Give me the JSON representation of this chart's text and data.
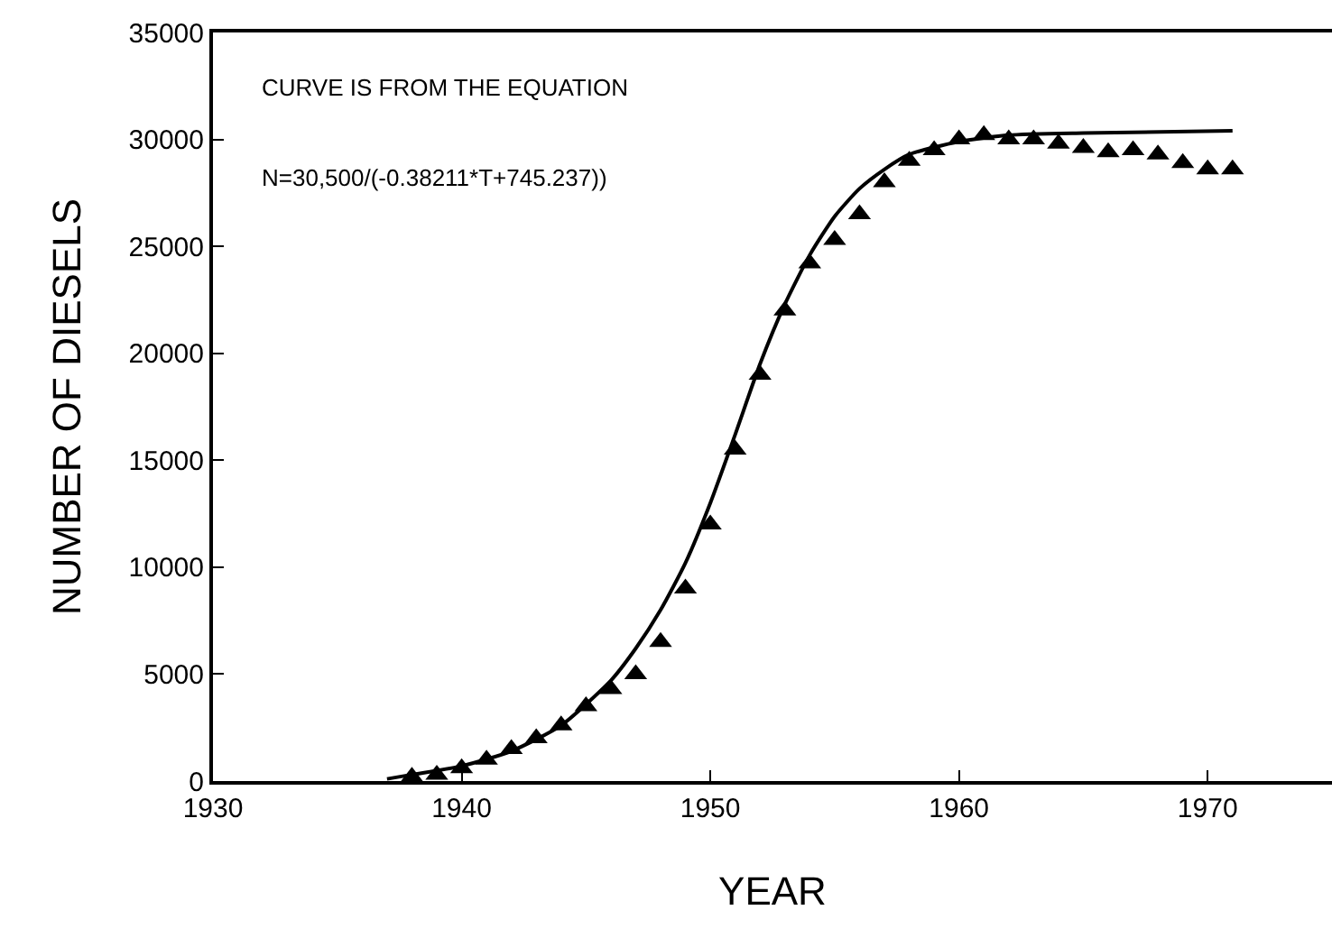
{
  "chart_data": {
    "type": "scatter",
    "xlabel": "YEAR",
    "ylabel": "NUMBER OF DIESELS",
    "annotations": [
      "CURVE IS FROM THE EQUATION",
      "N=30,500/(-0.38211*T+745.237))"
    ],
    "xlim": [
      1930,
      1975
    ],
    "xticks": [
      1930,
      1940,
      1950,
      1960,
      1970
    ],
    "ylim": [
      0,
      35000
    ],
    "yticks": [
      0,
      5000,
      10000,
      15000,
      20000,
      25000,
      30000,
      35000
    ],
    "grid": false,
    "series": [
      {
        "marker": "triangle",
        "color": "#000000",
        "x": [
          1938,
          1939,
          1940,
          1941,
          1942,
          1943,
          1944,
          1945,
          1946,
          1947,
          1948,
          1949,
          1950,
          1951,
          1952,
          1953,
          1954,
          1955,
          1956,
          1957,
          1958,
          1959,
          1960,
          1961,
          1962,
          1963,
          1964,
          1965,
          1966,
          1967,
          1968,
          1969,
          1970,
          1971
        ],
        "values": [
          200,
          300,
          600,
          1000,
          1500,
          2000,
          2600,
          3500,
          4300,
          5000,
          6500,
          9000,
          12000,
          15500,
          19000,
          22000,
          24200,
          25300,
          26500,
          28000,
          29000,
          29500,
          30000,
          30200,
          30000,
          30000,
          29800,
          29600,
          29400,
          29500,
          29300,
          28900,
          28600,
          28600
        ]
      },
      {
        "type": "line",
        "marker": "none",
        "line_style": "solid",
        "color": "#000000",
        "x": [
          1937,
          1938,
          1940,
          1942,
          1944,
          1946,
          1947,
          1948,
          1949,
          1950,
          1951,
          1952,
          1953,
          1954,
          1955,
          1956,
          1957,
          1958,
          1960,
          1962,
          1965,
          1971
        ],
        "values": [
          100,
          300,
          700,
          1400,
          2600,
          4700,
          6200,
          8000,
          10200,
          13000,
          16200,
          19500,
          22300,
          24600,
          26400,
          27700,
          28600,
          29300,
          29900,
          30200,
          30300,
          30400
        ]
      }
    ]
  }
}
